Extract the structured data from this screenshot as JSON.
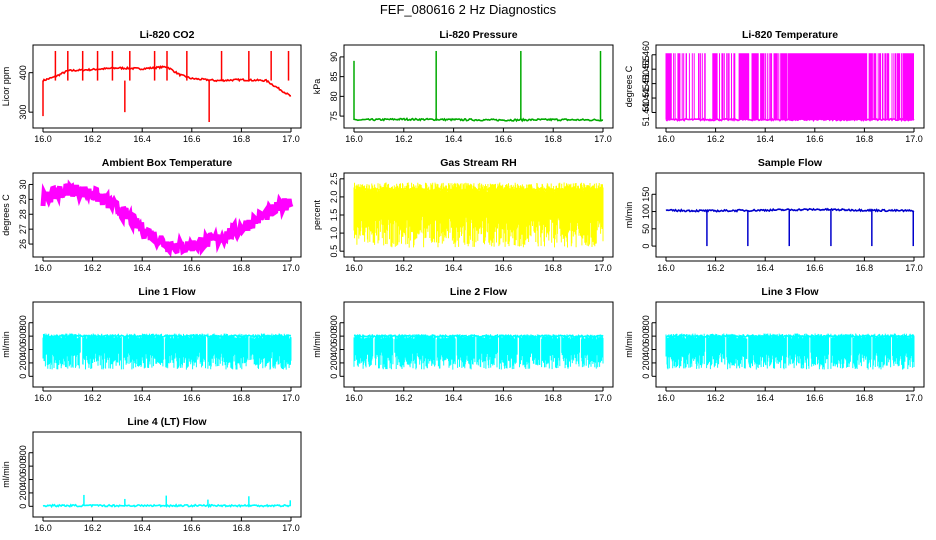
{
  "page": {
    "title": "FEF_080616  2 Hz Diagnostics"
  },
  "chart_data": [
    {
      "id": "co2",
      "type": "line",
      "title": "Li-820 CO2",
      "ylabel": "Licor ppm",
      "color": "#ff0000",
      "xlim": [
        16.0,
        17.0
      ],
      "ylim": [
        270,
        460
      ],
      "xticks": [
        "16.0",
        "16.2",
        "16.4",
        "16.6",
        "16.8",
        "17.0"
      ],
      "yticks": [
        {
          "v": 300,
          "label": "300"
        },
        {
          "v": 400,
          "label": "400"
        }
      ],
      "series": [
        {
          "x": [
            16.0,
            16.05,
            16.1,
            16.2,
            16.3,
            16.4,
            16.5,
            16.55,
            16.6,
            16.7,
            16.8,
            16.9,
            17.0
          ],
          "values": [
            380,
            390,
            405,
            408,
            412,
            410,
            415,
            395,
            385,
            380,
            382,
            380,
            340
          ]
        }
      ],
      "spikes": [
        {
          "x": 16.0,
          "v": 290
        },
        {
          "x": 16.05,
          "v": 455
        },
        {
          "x": 16.1,
          "v": 455
        },
        {
          "x": 16.16,
          "v": 455
        },
        {
          "x": 16.22,
          "v": 455
        },
        {
          "x": 16.28,
          "v": 455
        },
        {
          "x": 16.33,
          "v": 300
        },
        {
          "x": 16.35,
          "v": 455
        },
        {
          "x": 16.45,
          "v": 455
        },
        {
          "x": 16.5,
          "v": 455
        },
        {
          "x": 16.58,
          "v": 455
        },
        {
          "x": 16.67,
          "v": 275
        },
        {
          "x": 16.72,
          "v": 455
        },
        {
          "x": 16.83,
          "v": 455
        },
        {
          "x": 16.92,
          "v": 455
        },
        {
          "x": 16.99,
          "v": 455
        }
      ]
    },
    {
      "id": "pressure",
      "type": "line",
      "title": "Li-820 Pressure",
      "ylabel": "kPa",
      "color": "#00aa00",
      "xlim": [
        16.0,
        17.0
      ],
      "ylim": [
        73,
        92
      ],
      "xticks": [
        "16.0",
        "16.2",
        "16.4",
        "16.6",
        "16.8",
        "17.0"
      ],
      "yticks": [
        {
          "v": 75,
          "label": "75"
        },
        {
          "v": 80,
          "label": "80"
        },
        {
          "v": 85,
          "label": "85"
        },
        {
          "v": 90,
          "label": "90"
        }
      ],
      "series": [
        {
          "x": [
            16.0,
            16.2,
            16.4,
            16.6,
            16.8,
            17.0
          ],
          "values": [
            74,
            74.2,
            74.1,
            74.0,
            74.1,
            74.0
          ]
        }
      ],
      "spikes": [
        {
          "x": 16.0,
          "v": 89
        },
        {
          "x": 16.33,
          "v": 91.5
        },
        {
          "x": 16.67,
          "v": 91.5
        },
        {
          "x": 16.99,
          "v": 91.5
        }
      ]
    },
    {
      "id": "temperature",
      "type": "line",
      "title": "Li-820 Temperature",
      "ylabel": "degrees C",
      "color": "#ff00ff",
      "xlim": [
        16.0,
        17.0
      ],
      "ylim": [
        51.436,
        51.462
      ],
      "xticks": [
        "16.0",
        "16.2",
        "16.4",
        "16.6",
        "16.8",
        "17.0"
      ],
      "yticks": [
        {
          "v": 51.44,
          "label": "51.440"
        },
        {
          "v": 51.445,
          "label": "51.445"
        },
        {
          "v": 51.45,
          "label": "51.450"
        },
        {
          "v": 51.455,
          "label": "51.455"
        },
        {
          "v": 51.46,
          "label": "51.460"
        }
      ],
      "series": [
        {
          "x": [
            16.0,
            17.0
          ],
          "values": [
            51.4375,
            51.4375
          ]
        }
      ],
      "bands": [
        {
          "x0": 16.0,
          "x1": 16.1,
          "density": 0.5
        },
        {
          "x0": 16.1,
          "x1": 16.3,
          "density": 0.3
        },
        {
          "x0": 16.3,
          "x1": 16.5,
          "density": 0.6
        },
        {
          "x0": 16.5,
          "x1": 16.8,
          "density": 0.95
        },
        {
          "x0": 16.8,
          "x1": 17.0,
          "density": 0.6
        }
      ],
      "band_range": [
        51.4375,
        51.4605
      ]
    },
    {
      "id": "ambient",
      "type": "line",
      "title": "Ambient Box Temperature",
      "ylabel": "degrees C",
      "color": "#ff00ff",
      "xlim": [
        16.0,
        17.0
      ],
      "ylim": [
        25.4,
        30.5
      ],
      "xticks": [
        "16.0",
        "16.2",
        "16.4",
        "16.6",
        "16.8",
        "17.0"
      ],
      "yticks": [
        {
          "v": 26,
          "label": "26"
        },
        {
          "v": 27,
          "label": "27"
        },
        {
          "v": 28,
          "label": "28"
        },
        {
          "v": 29,
          "label": "29"
        },
        {
          "v": 30,
          "label": "30"
        }
      ],
      "series": [
        {
          "x": [
            16.0,
            16.1,
            16.2,
            16.3,
            16.4,
            16.5,
            16.55,
            16.6,
            16.7,
            16.8,
            16.9,
            17.0
          ],
          "values": [
            29.0,
            29.7,
            29.4,
            28.4,
            27.0,
            26.0,
            25.8,
            25.9,
            26.3,
            27.1,
            28.0,
            28.9
          ]
        }
      ],
      "noise": 0.45
    },
    {
      "id": "rh",
      "type": "line",
      "title": "Gas Stream RH",
      "ylabel": "percent",
      "color": "#ffff00",
      "xlim": [
        16.0,
        17.0
      ],
      "ylim": [
        0.45,
        2.55
      ],
      "xticks": [
        "16.0",
        "16.2",
        "16.4",
        "16.6",
        "16.8",
        "17.0"
      ],
      "yticks": [
        {
          "v": 0.5,
          "label": "0.5"
        },
        {
          "v": 1.0,
          "label": "1.0"
        },
        {
          "v": 1.5,
          "label": "1.5"
        },
        {
          "v": 2.0,
          "label": "2.0"
        },
        {
          "v": 2.5,
          "label": "2.5"
        }
      ],
      "series": [
        {
          "x": [
            16.0,
            17.0
          ],
          "values": [
            2.2,
            2.2
          ]
        }
      ],
      "band_range": [
        0.6,
        2.4
      ]
    },
    {
      "id": "sample",
      "type": "line",
      "title": "Sample Flow",
      "ylabel": "ml/min",
      "color": "#0000cc",
      "xlim": [
        16.0,
        17.0
      ],
      "ylim": [
        -20,
        200
      ],
      "xticks": [
        "16.0",
        "16.2",
        "16.4",
        "16.6",
        "16.8",
        "17.0"
      ],
      "yticks": [
        {
          "v": 0,
          "label": "0"
        },
        {
          "v": 50,
          "label": "50"
        },
        {
          "v": 100,
          "label": "100"
        },
        {
          "v": 150,
          "label": "150"
        }
      ],
      "series": [
        {
          "x": [
            16.0,
            16.2,
            16.4,
            16.6,
            16.8,
            17.0
          ],
          "values": [
            103,
            102,
            104,
            106,
            104,
            102
          ]
        }
      ],
      "spikes": [
        {
          "x": 16.165,
          "v": 0
        },
        {
          "x": 16.33,
          "v": 0
        },
        {
          "x": 16.497,
          "v": 0
        },
        {
          "x": 16.665,
          "v": 0
        },
        {
          "x": 16.83,
          "v": 0
        },
        {
          "x": 16.997,
          "v": 0
        }
      ]
    },
    {
      "id": "line1",
      "type": "line",
      "title": "Line 1 Flow",
      "ylabel": "ml/min",
      "color": "#00ffff",
      "xlim": [
        16.0,
        17.0
      ],
      "ylim": [
        -100,
        1050
      ],
      "xticks": [
        "16.0",
        "16.2",
        "16.4",
        "16.6",
        "16.8",
        "17.0"
      ],
      "yticks": [
        {
          "v": 0,
          "label": "0"
        },
        {
          "v": 200,
          "label": "200"
        },
        {
          "v": 400,
          "label": "400"
        },
        {
          "v": 600,
          "label": "600"
        },
        {
          "v": 800,
          "label": "800"
        }
      ],
      "series": [
        {
          "x": [
            16.0,
            17.0
          ],
          "values": [
            600,
            600
          ]
        }
      ],
      "band_range": [
        100,
        640
      ],
      "gaps": [
        16.155,
        16.32,
        16.49,
        16.66,
        16.83
      ]
    },
    {
      "id": "line2",
      "type": "line",
      "title": "Line 2 Flow",
      "ylabel": "ml/min",
      "color": "#00ffff",
      "xlim": [
        16.0,
        17.0
      ],
      "ylim": [
        -100,
        1050
      ],
      "xticks": [
        "16.0",
        "16.2",
        "16.4",
        "16.6",
        "16.8",
        "17.0"
      ],
      "yticks": [
        {
          "v": 0,
          "label": "0"
        },
        {
          "v": 200,
          "label": "200"
        },
        {
          "v": 400,
          "label": "400"
        },
        {
          "v": 600,
          "label": "600"
        },
        {
          "v": 800,
          "label": "800"
        }
      ],
      "series": [
        {
          "x": [
            16.0,
            17.0
          ],
          "values": [
            600,
            600
          ]
        }
      ],
      "band_range": [
        100,
        630
      ],
      "gaps": [
        16.08,
        16.16,
        16.33,
        16.41,
        16.49,
        16.58,
        16.66,
        16.75,
        16.83,
        16.91
      ]
    },
    {
      "id": "line3",
      "type": "line",
      "title": "Line 3 Flow",
      "ylabel": "ml/min",
      "color": "#00ffff",
      "xlim": [
        16.0,
        17.0
      ],
      "ylim": [
        -100,
        1050
      ],
      "xticks": [
        "16.0",
        "16.2",
        "16.4",
        "16.6",
        "16.8",
        "17.0"
      ],
      "yticks": [
        {
          "v": 0,
          "label": "0"
        },
        {
          "v": 200,
          "label": "200"
        },
        {
          "v": 400,
          "label": "400"
        },
        {
          "v": 600,
          "label": "600"
        },
        {
          "v": 800,
          "label": "800"
        }
      ],
      "series": [
        {
          "x": [
            16.0,
            17.0
          ],
          "values": [
            600,
            600
          ]
        }
      ],
      "band_range": [
        100,
        640
      ],
      "gaps": [
        16.16,
        16.24,
        16.33,
        16.49,
        16.58,
        16.66,
        16.75,
        16.83,
        16.91
      ]
    },
    {
      "id": "line4",
      "type": "line",
      "title": "Line 4 (LT) Flow",
      "ylabel": "ml/min",
      "color": "#00ffff",
      "xlim": [
        16.0,
        17.0
      ],
      "ylim": [
        -100,
        1050
      ],
      "xticks": [
        "16.0",
        "16.2",
        "16.4",
        "16.6",
        "16.8",
        "17.0"
      ],
      "yticks": [
        {
          "v": 0,
          "label": "0"
        },
        {
          "v": 200,
          "label": "200"
        },
        {
          "v": 400,
          "label": "400"
        },
        {
          "v": 600,
          "label": "600"
        },
        {
          "v": 800,
          "label": "800"
        }
      ],
      "series": [
        {
          "x": [
            16.0,
            17.0
          ],
          "values": [
            10,
            10
          ]
        }
      ],
      "spikes": [
        {
          "x": 16.165,
          "v": 170
        },
        {
          "x": 16.33,
          "v": 110
        },
        {
          "x": 16.497,
          "v": 160
        },
        {
          "x": 16.665,
          "v": 100
        },
        {
          "x": 16.83,
          "v": 150
        },
        {
          "x": 16.997,
          "v": 90
        }
      ]
    }
  ]
}
